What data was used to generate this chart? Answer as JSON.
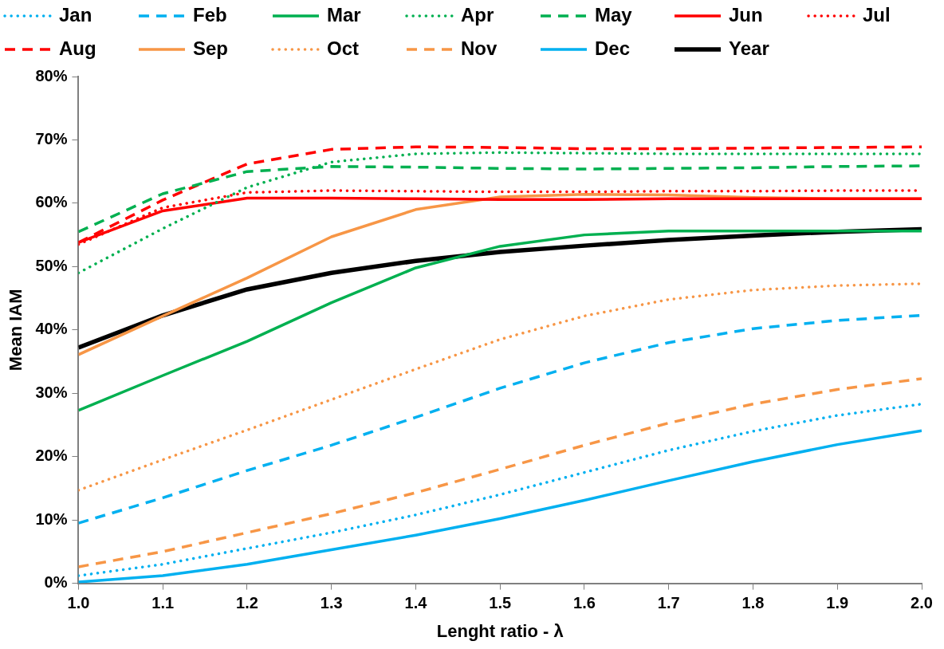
{
  "chart_data": {
    "type": "line",
    "xlabel": "Lenght ratio - λ",
    "ylabel": "Mean IAM",
    "x": [
      1.0,
      1.1,
      1.2,
      1.3,
      1.4,
      1.5,
      1.6,
      1.7,
      1.8,
      1.9,
      2.0
    ],
    "xlim": [
      1.0,
      2.0
    ],
    "xticks": [
      {
        "value": 1.0,
        "label": "1.0"
      },
      {
        "value": 1.1,
        "label": "1.1"
      },
      {
        "value": 1.2,
        "label": "1.2"
      },
      {
        "value": 1.3,
        "label": "1.3"
      },
      {
        "value": 1.4,
        "label": "1.4"
      },
      {
        "value": 1.5,
        "label": "1.5"
      },
      {
        "value": 1.6,
        "label": "1.6"
      },
      {
        "value": 1.7,
        "label": "1.7"
      },
      {
        "value": 1.8,
        "label": "1.8"
      },
      {
        "value": 1.9,
        "label": "1.9"
      },
      {
        "value": 2.0,
        "label": "2.0"
      }
    ],
    "ylim": [
      0,
      80
    ],
    "yticks": [
      {
        "value": 0,
        "label": "0%"
      },
      {
        "value": 10,
        "label": "10%"
      },
      {
        "value": 20,
        "label": "20%"
      },
      {
        "value": 30,
        "label": "30%"
      },
      {
        "value": 40,
        "label": "40%"
      },
      {
        "value": 50,
        "label": "50%"
      },
      {
        "value": 60,
        "label": "60%"
      },
      {
        "value": 70,
        "label": "70%"
      },
      {
        "value": 80,
        "label": "80%"
      }
    ],
    "grid": false,
    "legend": "top",
    "marker": "none",
    "series": [
      {
        "name": "Jan",
        "color": "#00b0f0",
        "line_style": "dotted",
        "values": [
          1.2,
          3,
          5.5,
          8,
          10.8,
          14,
          17.5,
          21,
          24,
          26.5,
          28.3
        ]
      },
      {
        "name": "Feb",
        "color": "#00b0f0",
        "line_style": "dashed",
        "values": [
          9.5,
          13.5,
          17.8,
          21.8,
          26.2,
          30.8,
          34.8,
          38,
          40.2,
          41.5,
          42.3
        ]
      },
      {
        "name": "Mar",
        "color": "#00b050",
        "line_style": "solid",
        "values": [
          27.3,
          32.8,
          38.2,
          44.3,
          49.8,
          53.2,
          55,
          55.6,
          55.6,
          55.6,
          55.6
        ]
      },
      {
        "name": "Apr",
        "color": "#00b050",
        "line_style": "dotted",
        "values": [
          49,
          56,
          62.5,
          66.5,
          67.8,
          68,
          67.9,
          67.8,
          67.8,
          67.8,
          67.8
        ]
      },
      {
        "name": "May",
        "color": "#00b050",
        "line_style": "dashed",
        "values": [
          55.5,
          61.5,
          65,
          65.8,
          65.7,
          65.5,
          65.4,
          65.5,
          65.6,
          65.8,
          65.9
        ]
      },
      {
        "name": "Jun",
        "color": "#ff0000",
        "line_style": "solid",
        "values": [
          53.8,
          58.8,
          60.8,
          60.8,
          60.7,
          60.6,
          60.6,
          60.7,
          60.7,
          60.7,
          60.7
        ]
      },
      {
        "name": "Jul",
        "color": "#ff0000",
        "line_style": "dotted",
        "values": [
          53.5,
          59.3,
          61.7,
          62,
          61.9,
          61.8,
          61.8,
          61.9,
          61.9,
          62,
          62
        ]
      },
      {
        "name": "Aug",
        "color": "#ff0000",
        "line_style": "dashed",
        "values": [
          53.8,
          60.5,
          66.2,
          68.5,
          68.9,
          68.8,
          68.6,
          68.6,
          68.7,
          68.8,
          68.9
        ]
      },
      {
        "name": "Sep",
        "color": "#f79646",
        "line_style": "solid",
        "values": [
          36.1,
          42.2,
          48.2,
          54.7,
          59,
          61,
          61.4,
          61.3,
          60.9,
          60.7,
          60.7
        ]
      },
      {
        "name": "Oct",
        "color": "#f79646",
        "line_style": "dotted",
        "values": [
          14.7,
          19.5,
          24.2,
          29,
          33.8,
          38.5,
          42.2,
          44.8,
          46.3,
          47,
          47.3
        ]
      },
      {
        "name": "Nov",
        "color": "#f79646",
        "line_style": "dashed",
        "values": [
          2.6,
          5,
          8,
          11,
          14.3,
          18,
          21.8,
          25.3,
          28.3,
          30.6,
          32.3
        ]
      },
      {
        "name": "Dec",
        "color": "#00b0f0",
        "line_style": "solid",
        "values": [
          0.2,
          1.2,
          3,
          5.3,
          7.6,
          10.2,
          13.1,
          16.2,
          19.2,
          21.9,
          24.1
        ]
      },
      {
        "name": "Year",
        "color": "#000000",
        "line_style": "solid",
        "values": [
          37.2,
          42.3,
          46.4,
          49,
          50.9,
          52.3,
          53.3,
          54.2,
          54.9,
          55.5,
          55.9
        ]
      }
    ]
  }
}
